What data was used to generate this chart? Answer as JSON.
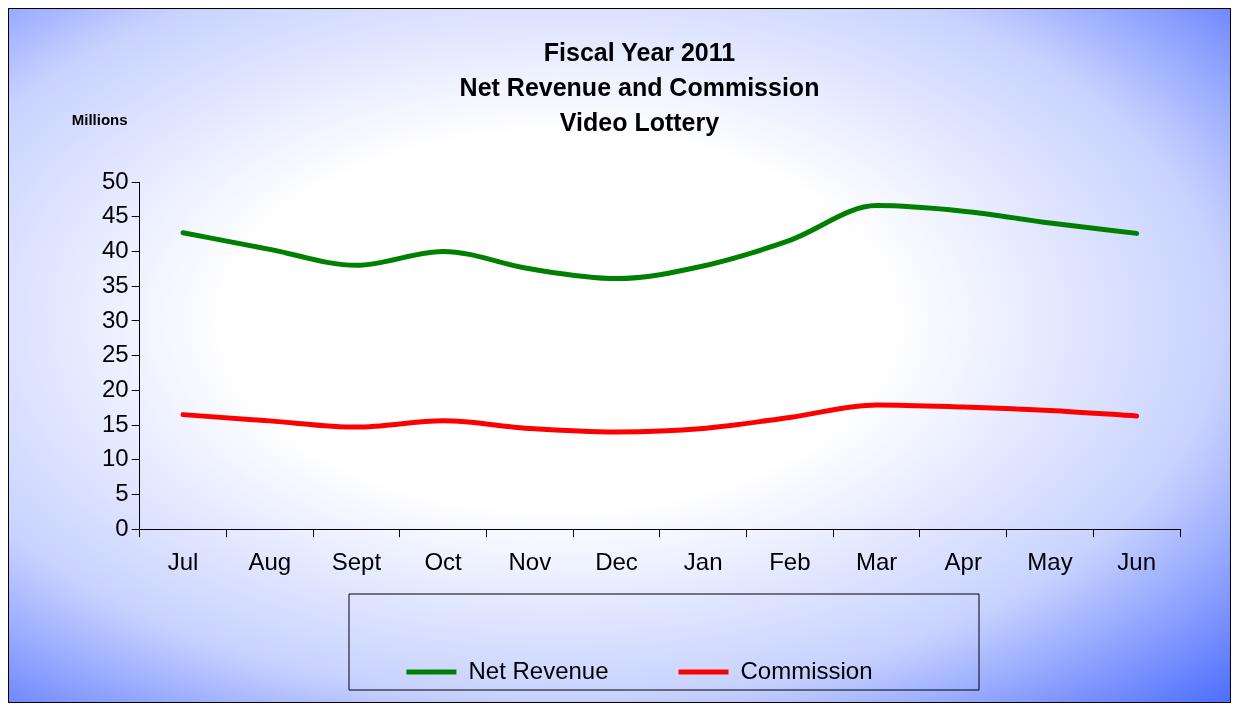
{
  "chart_data": {
    "type": "line",
    "title": "Fiscal Year 2011\nNet Revenue and Commission\nVideo Lottery",
    "ylabel": "Millions",
    "categories": [
      "Jul",
      "Aug",
      "Sept",
      "Oct",
      "Nov",
      "Dec",
      "Jan",
      "Feb",
      "Mar",
      "Apr",
      "May",
      "Jun"
    ],
    "series": [
      {
        "name": "Net Revenue",
        "color": "#008000",
        "values": [
          42.7,
          40.3,
          38.0,
          40.0,
          37.5,
          36.1,
          37.9,
          41.6,
          46.6,
          45.8,
          44.1,
          42.6
        ]
      },
      {
        "name": "Commission",
        "color": "#ff0000",
        "values": [
          16.5,
          15.6,
          14.7,
          15.6,
          14.5,
          14.0,
          14.5,
          16.1,
          17.9,
          17.6,
          17.1,
          16.3
        ]
      }
    ],
    "ylim": [
      0,
      50
    ],
    "yticks": [
      0,
      5,
      10,
      15,
      20,
      25,
      30,
      35,
      40,
      45,
      50
    ],
    "legend": "bottom",
    "marker": "none",
    "line_style": "solid"
  }
}
